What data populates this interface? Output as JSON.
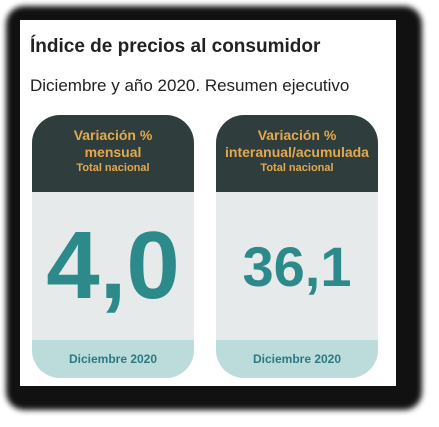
{
  "header": {
    "title": "Índice de precios al consumidor",
    "subtitle": "Diciembre y año 2020. Resumen ejecutivo"
  },
  "cards": [
    {
      "label": [
        "Variación %",
        "mensual"
      ],
      "scope": "Total nacional",
      "value": "4,0",
      "period": "Diciembre 2020"
    },
    {
      "label": [
        "Variación %",
        "interanual/acumulada"
      ],
      "scope": "Total nacional",
      "value": "36,1",
      "period": "Diciembre 2020"
    }
  ]
}
